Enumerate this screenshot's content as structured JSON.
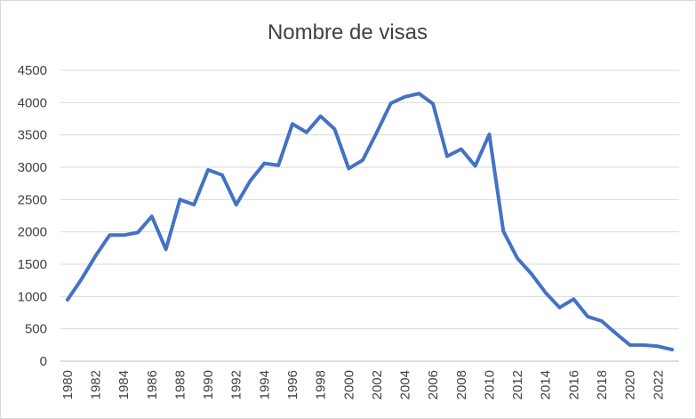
{
  "chart_data": {
    "type": "line",
    "title": "Nombre de visas",
    "xlabel": "",
    "ylabel": "",
    "ylim": [
      0,
      4500
    ],
    "y_ticks": [
      0,
      500,
      1000,
      1500,
      2000,
      2500,
      3000,
      3500,
      4000,
      4500
    ],
    "x_tick_labels": [
      "1980",
      "1982",
      "1984",
      "1986",
      "1988",
      "1990",
      "1992",
      "1994",
      "1996",
      "1998",
      "2000",
      "2002",
      "2004",
      "2006",
      "2008",
      "2010",
      "2012",
      "2014",
      "2016",
      "2018",
      "2020",
      "2022"
    ],
    "grid": true,
    "legend": "none",
    "colors": {
      "series": "#4472c4",
      "grid": "#d9d9d9",
      "text": "#404040"
    },
    "series": [
      {
        "x": [
          1980,
          1981,
          1982,
          1983,
          1984,
          1985,
          1986,
          1987,
          1988,
          1989,
          1990,
          1991,
          1992,
          1993,
          1994,
          1995,
          1996,
          1997,
          1998,
          1999,
          2000,
          2001,
          2002,
          2003,
          2004,
          2005,
          2006,
          2007,
          2008,
          2009,
          2010,
          2011,
          2012,
          2013,
          2014,
          2015,
          2016,
          2017,
          2018,
          2019,
          2020,
          2021,
          2022,
          2023
        ],
        "values": [
          950,
          1270,
          1630,
          1950,
          1950,
          1990,
          2240,
          1730,
          2500,
          2420,
          2960,
          2880,
          2420,
          2790,
          3060,
          3030,
          3670,
          3540,
          3790,
          3590,
          2980,
          3110,
          3540,
          3990,
          4090,
          4140,
          3980,
          3170,
          3280,
          3020,
          3510,
          2010,
          1590,
          1350,
          1060,
          830,
          960,
          690,
          620,
          430,
          250,
          250,
          230,
          180
        ]
      }
    ]
  }
}
